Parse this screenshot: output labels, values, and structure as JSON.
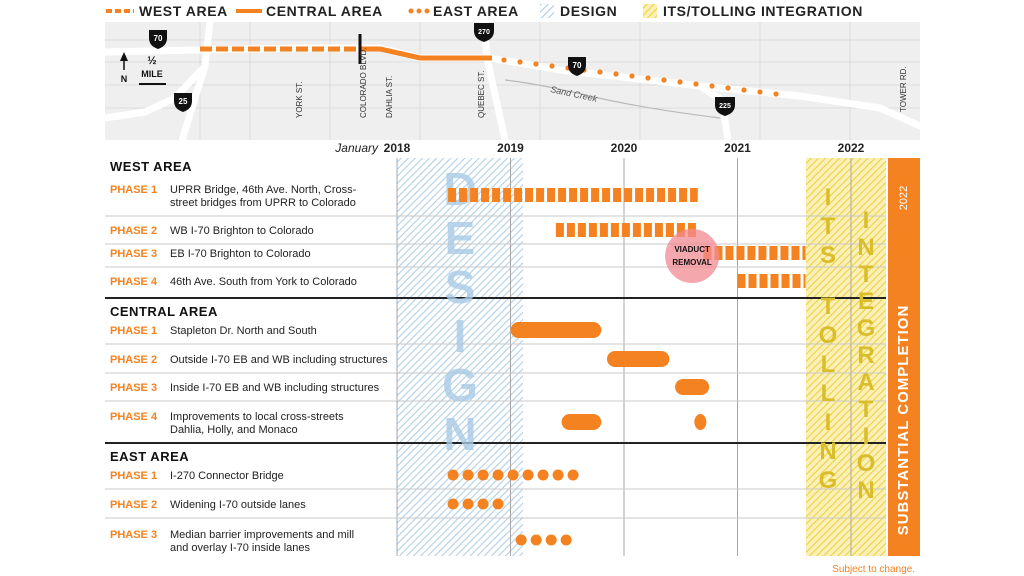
{
  "legend": [
    {
      "label": "WEST AREA",
      "style": "dashed-line",
      "color": "#f58220"
    },
    {
      "label": "CENTRAL AREA",
      "style": "solid-line",
      "color": "#f58220"
    },
    {
      "label": "EAST AREA",
      "style": "dotted-line",
      "color": "#f58220"
    },
    {
      "label": "DESIGN",
      "style": "blue-hatch",
      "color": "#aecfe8"
    },
    {
      "label": "ITS/TOLLING INTEGRATION",
      "style": "yellow-hatch",
      "color": "#f3d64a"
    }
  ],
  "map": {
    "streets": [
      "YORK ST.",
      "COLORADO BLVD.",
      "DAHLIA ST.",
      "QUEBEC ST.",
      "TOWER RD."
    ],
    "creek": "Sand Creek",
    "shields": [
      "70",
      "25",
      "270",
      "70",
      "225"
    ],
    "scale_value": "½",
    "scale_unit": "MILE",
    "north": "N"
  },
  "chart_data": {
    "type": "gantt",
    "x_unit": "year",
    "axis_label": "January",
    "ticks": [
      "2018",
      "2019",
      "2020",
      "2021",
      "2022"
    ],
    "design_period": [
      "2018.0",
      "2019.1"
    ],
    "design_label": "DESIGN",
    "its_tolling_period": [
      "2021.6",
      "2022.1"
    ],
    "its_labels": [
      "ITS",
      "TOLLING"
    ],
    "integration_labels": [
      "INTEGRATION"
    ],
    "substantial_completion": {
      "year": "2022",
      "label": "SUBSTANTIAL COMPLETION"
    },
    "groups": [
      {
        "name": "WEST AREA",
        "style": "dashed",
        "phases": [
          {
            "phase": "PHASE 1",
            "desc": [
              "UPRR Bridge, 46th Ave. North, Cross-",
              "street bridges from UPRR to Colorado"
            ],
            "bars": [
              {
                "start": 2018.45,
                "end": 2020.65
              }
            ]
          },
          {
            "phase": "PHASE 2",
            "desc": [
              "WB I-70 Brighton to Colorado"
            ],
            "bars": [
              {
                "start": 2019.4,
                "end": 2020.65
              }
            ]
          },
          {
            "phase": "PHASE 3",
            "desc": [
              "EB I-70 Brighton to Colorado"
            ],
            "bars": [
              {
                "start": 2020.7,
                "end": 2021.6
              }
            ]
          },
          {
            "phase": "PHASE 4",
            "desc": [
              "46th Ave. South from York to Colorado"
            ],
            "bars": [
              {
                "start": 2021.0,
                "end": 2021.6
              }
            ]
          }
        ]
      },
      {
        "name": "CENTRAL AREA",
        "style": "solid",
        "phases": [
          {
            "phase": "PHASE 1",
            "desc": [
              "Stapleton Dr. North and South"
            ],
            "bars": [
              {
                "start": 2019.0,
                "end": 2019.8
              }
            ]
          },
          {
            "phase": "PHASE 2",
            "desc": [
              "Outside I-70 EB and WB including structures"
            ],
            "bars": [
              {
                "start": 2019.85,
                "end": 2020.4
              }
            ]
          },
          {
            "phase": "PHASE 3",
            "desc": [
              "Inside I-70 EB and WB including structures"
            ],
            "bars": [
              {
                "start": 2020.45,
                "end": 2020.75
              }
            ]
          },
          {
            "phase": "PHASE 4",
            "desc": [
              "Improvements to local cross-streets",
              "Dahlia, Holly, and Monaco"
            ],
            "bars": [
              {
                "start": 2019.45,
                "end": 2019.8
              },
              {
                "start": 2020.62,
                "end": 2020.72
              }
            ]
          }
        ]
      },
      {
        "name": "EAST AREA",
        "style": "dotted",
        "phases": [
          {
            "phase": "PHASE 1",
            "desc": [
              "I-270 Connector Bridge"
            ],
            "bars": [
              {
                "start": 2018.45,
                "end": 2019.6
              }
            ]
          },
          {
            "phase": "PHASE 2",
            "desc": [
              "Widening I-70 outside lanes"
            ],
            "bars": [
              {
                "start": 2018.45,
                "end": 2018.9
              }
            ]
          },
          {
            "phase": "PHASE 3",
            "desc": [
              "Median barrier improvements and mill",
              "and overlay I-70 inside lanes"
            ],
            "bars": [
              {
                "start": 2019.05,
                "end": 2019.5
              }
            ]
          }
        ]
      }
    ],
    "annotation": {
      "label": [
        "VIADUCT",
        "REMOVAL"
      ],
      "x": 2020.6,
      "row": "WEST AREA PHASE 3"
    }
  },
  "footnote": "Subject to change.",
  "colors": {
    "orange": "#f58220",
    "grid": "#a7a7a7",
    "text": "#222222"
  }
}
